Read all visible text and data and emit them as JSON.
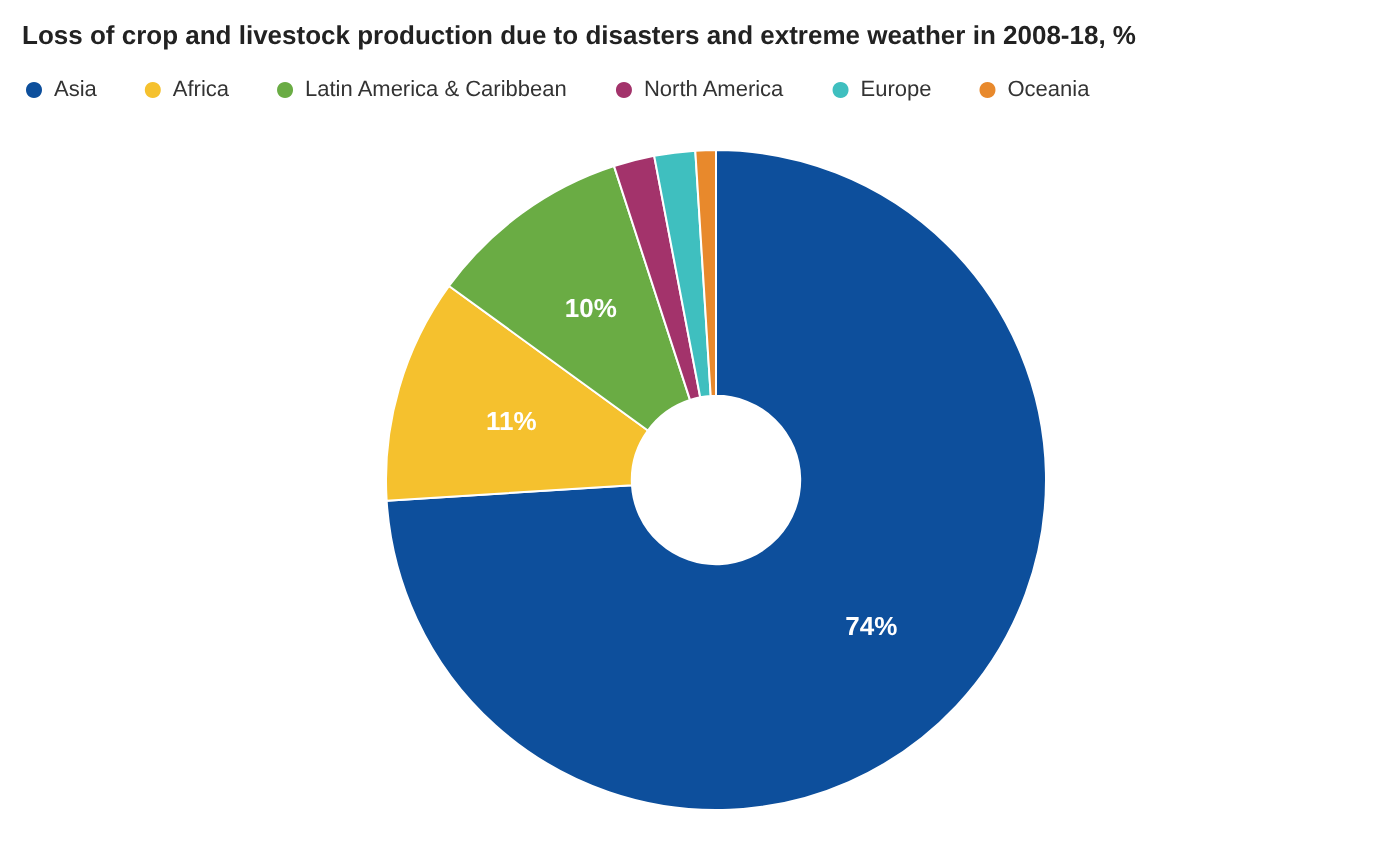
{
  "chart_data": {
    "type": "donut",
    "title": "Loss of crop and livestock production due to disasters and extreme weather in 2008-18, %",
    "categories": [
      "Asia",
      "Africa",
      "Latin America & Caribbean",
      "North America",
      "Europe",
      "Oceania"
    ],
    "values": [
      74,
      11,
      10,
      2,
      2,
      1
    ],
    "colors": [
      "#0d4f9c",
      "#f5c12e",
      "#6aac44",
      "#a3336b",
      "#3fbfbf",
      "#e8892c"
    ],
    "value_labels": [
      "74%",
      "11%",
      "10%",
      null,
      null,
      null
    ],
    "legend": "top left"
  }
}
